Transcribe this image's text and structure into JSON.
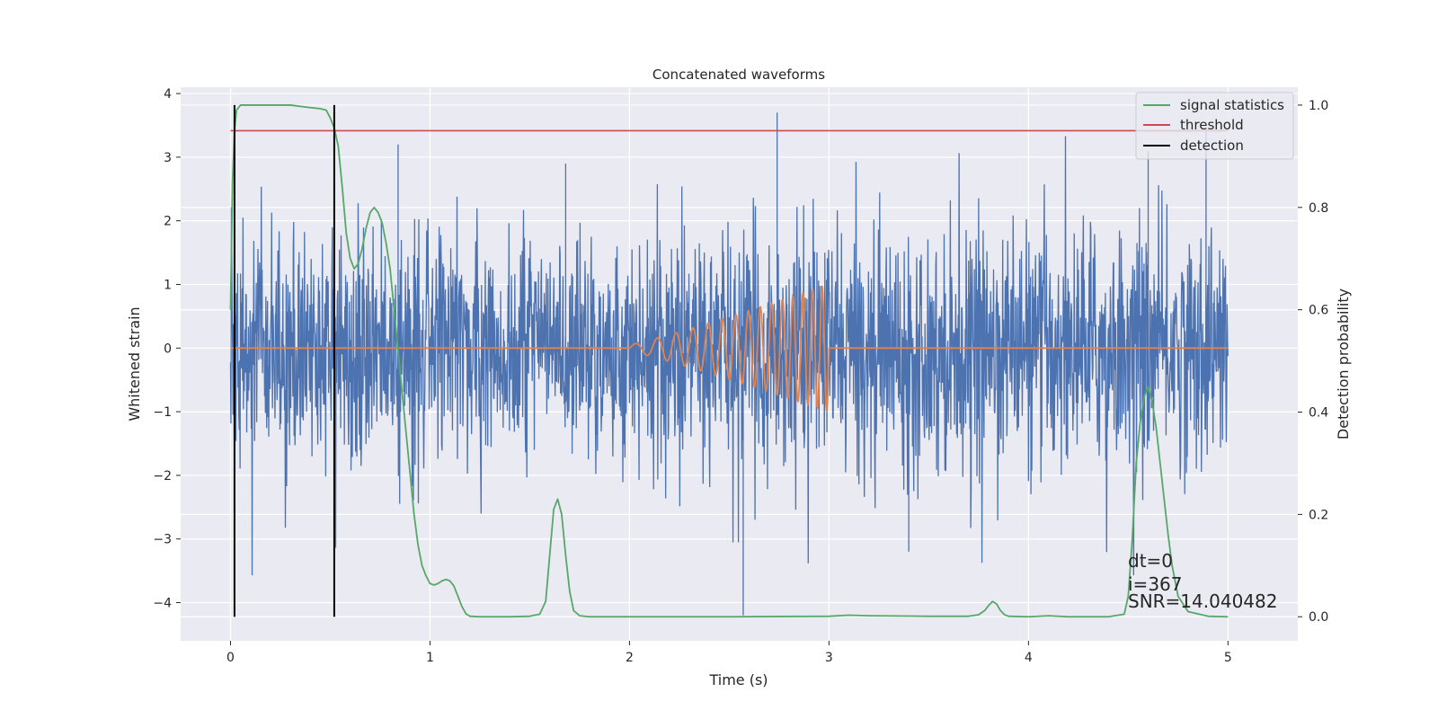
{
  "chart_data": {
    "type": "line",
    "title": "Concatenated waveforms",
    "xlabel": "Time (s)",
    "ylabel": "Whitened strain",
    "ylabel_right": "Detection probability",
    "xlim": [
      -0.25,
      5.35
    ],
    "ylim": [
      -4.6,
      4.1
    ],
    "ylim_right": [
      -0.047,
      1.035
    ],
    "x_ticks": [
      0,
      1,
      2,
      3,
      4,
      5
    ],
    "x_tick_labels": [
      "0",
      "1",
      "2",
      "3",
      "4",
      "5"
    ],
    "y_ticks": [
      -4,
      -3,
      -2,
      -1,
      0,
      1,
      2,
      3,
      4
    ],
    "y_tick_labels": [
      "−4",
      "−3",
      "−2",
      "−1",
      "0",
      "1",
      "2",
      "3",
      "4"
    ],
    "y_right_ticks": [
      0.0,
      0.2,
      0.4,
      0.6,
      0.8,
      1.0
    ],
    "y_right_tick_labels": [
      "0.0",
      "0.2",
      "0.4",
      "0.6",
      "0.8",
      "1.0"
    ],
    "grid": true,
    "legend_position": "top-right",
    "colors": {
      "background": "#eaeaf2",
      "grid": "#ffffff",
      "strain": "#4c72b0",
      "template": "#dd8452",
      "signal_statistics": "#55a868",
      "threshold": "#c44e52",
      "detection": "#000000"
    },
    "noise": {
      "x_range": [
        0,
        5
      ],
      "typical_amplitude": 1.2,
      "peak_max": 3.7,
      "peak_min": -4.2
    },
    "template": {
      "x_range": [
        2,
        3
      ],
      "amplitude_start": 0.05,
      "amplitude_end": 1.0,
      "freq_start_hz": 8,
      "freq_end_hz": 22
    },
    "threshold": 0.95,
    "detections": [
      0.02,
      0.52
    ],
    "series": [
      {
        "name": "signal statistics",
        "x": [
          0,
          0.01,
          0.02,
          0.03,
          0.05,
          0.1,
          0.2,
          0.3,
          0.4,
          0.45,
          0.48,
          0.5,
          0.52,
          0.54,
          0.56,
          0.58,
          0.6,
          0.62,
          0.64,
          0.66,
          0.68,
          0.7,
          0.72,
          0.74,
          0.76,
          0.78,
          0.8,
          0.82,
          0.84,
          0.86,
          0.88,
          0.9,
          0.92,
          0.94,
          0.96,
          0.98,
          1.0,
          1.02,
          1.04,
          1.06,
          1.08,
          1.1,
          1.12,
          1.14,
          1.16,
          1.18,
          1.2,
          1.25,
          1.3,
          1.4,
          1.5,
          1.55,
          1.58,
          1.6,
          1.62,
          1.64,
          1.66,
          1.68,
          1.7,
          1.72,
          1.75,
          1.8,
          2.0,
          2.5,
          3.0,
          3.1,
          3.2,
          3.5,
          3.7,
          3.75,
          3.78,
          3.8,
          3.82,
          3.84,
          3.86,
          3.88,
          3.9,
          4.0,
          4.1,
          4.2,
          4.4,
          4.48,
          4.5,
          4.52,
          4.54,
          4.56,
          4.58,
          4.6,
          4.62,
          4.64,
          4.66,
          4.68,
          4.7,
          4.72,
          4.75,
          4.8,
          4.9,
          5.0
        ],
        "values": [
          0.6,
          0.85,
          0.95,
          0.99,
          1.0,
          1.0,
          1.0,
          1.0,
          0.995,
          0.993,
          0.99,
          0.975,
          0.955,
          0.92,
          0.84,
          0.75,
          0.7,
          0.68,
          0.69,
          0.72,
          0.76,
          0.79,
          0.8,
          0.79,
          0.77,
          0.73,
          0.68,
          0.6,
          0.52,
          0.44,
          0.36,
          0.28,
          0.2,
          0.14,
          0.1,
          0.08,
          0.065,
          0.062,
          0.065,
          0.07,
          0.073,
          0.07,
          0.06,
          0.04,
          0.02,
          0.006,
          0.001,
          0.0,
          0.0,
          0.0,
          0.001,
          0.005,
          0.03,
          0.12,
          0.21,
          0.23,
          0.2,
          0.12,
          0.05,
          0.012,
          0.002,
          0.0,
          0.0,
          0.0,
          0.001,
          0.003,
          0.002,
          0.001,
          0.001,
          0.004,
          0.012,
          0.022,
          0.03,
          0.025,
          0.012,
          0.004,
          0.001,
          0.0,
          0.002,
          0.0,
          0.0,
          0.005,
          0.04,
          0.15,
          0.3,
          0.38,
          0.43,
          0.45,
          0.42,
          0.37,
          0.3,
          0.23,
          0.16,
          0.1,
          0.04,
          0.01,
          0.001,
          0.0
        ]
      },
      {
        "name": "threshold",
        "x": [
          0,
          5
        ],
        "values": [
          0.95,
          0.95
        ]
      },
      {
        "name": "detection",
        "x": [
          0.02,
          0.52
        ],
        "values": [
          1.0,
          1.0
        ]
      }
    ],
    "annotations": [
      "dt=0",
      "i=367",
      "SNR=14.040482"
    ]
  }
}
